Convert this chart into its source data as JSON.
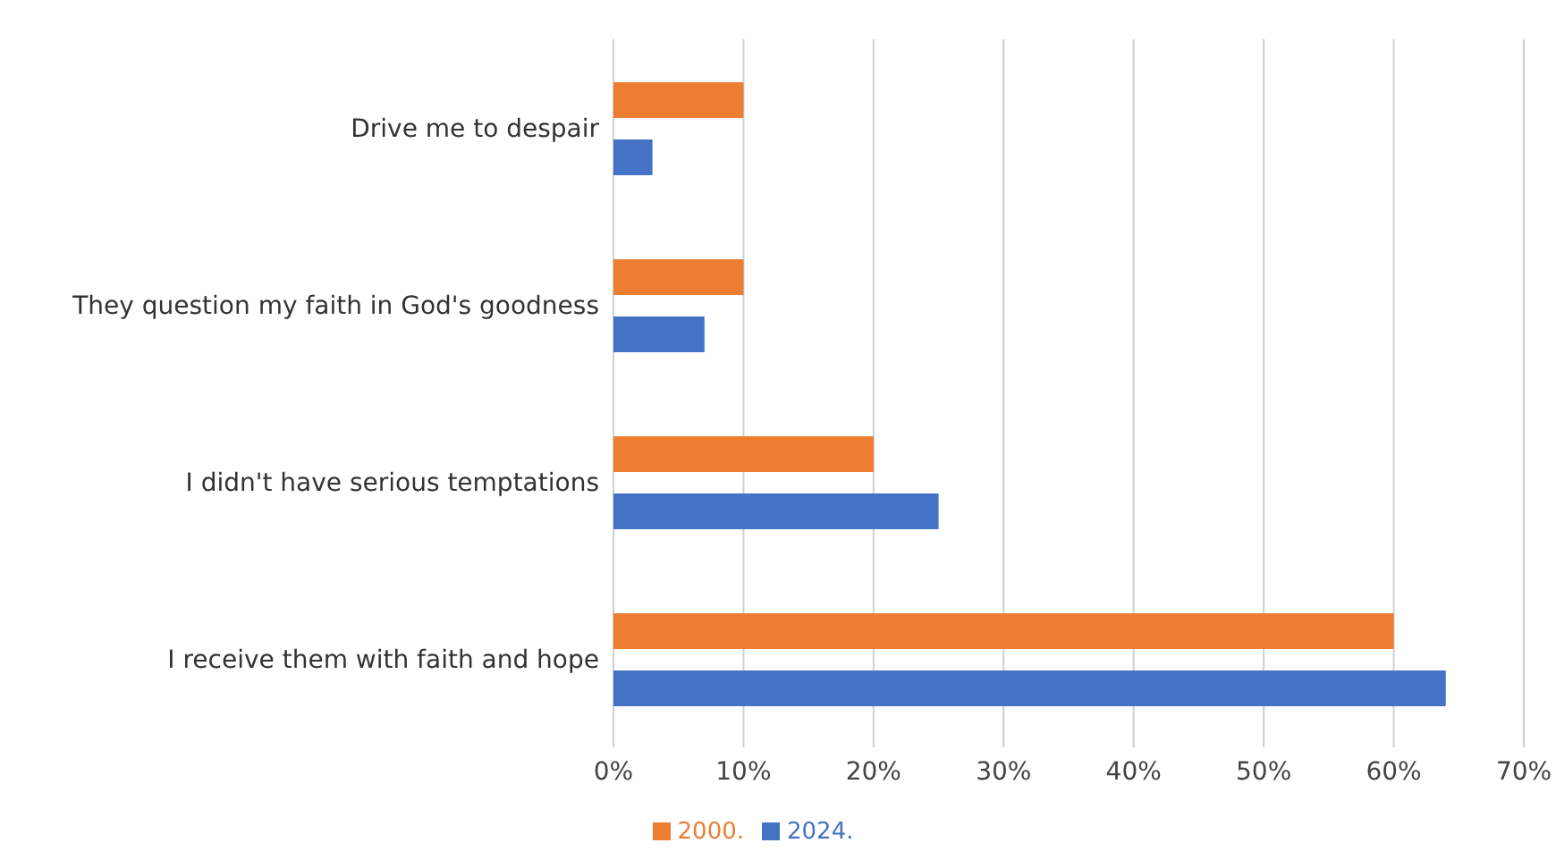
{
  "chart_data": {
    "type": "bar",
    "orientation": "horizontal",
    "categories": [
      "Drive me to despair",
      "They question my faith in God's goodness",
      "I didn't have serious temptations",
      "I receive them with faith and hope"
    ],
    "series": [
      {
        "name": "2000.",
        "color": "#ed7d31",
        "values": [
          10,
          10,
          20,
          60
        ]
      },
      {
        "name": "2024.",
        "color": "#4472c4",
        "values": [
          3,
          7,
          25,
          64
        ]
      }
    ],
    "xlim": [
      0,
      70
    ],
    "xticks": [
      {
        "value": 0,
        "label": "0%"
      },
      {
        "value": 10,
        "label": "10%"
      },
      {
        "value": 20,
        "label": "20%"
      },
      {
        "value": 30,
        "label": "30%"
      },
      {
        "value": 40,
        "label": "40%"
      },
      {
        "value": 50,
        "label": "50%"
      },
      {
        "value": 60,
        "label": "60%"
      },
      {
        "value": 70,
        "label": "70%"
      }
    ],
    "grid": "x",
    "legend": "bottom"
  }
}
